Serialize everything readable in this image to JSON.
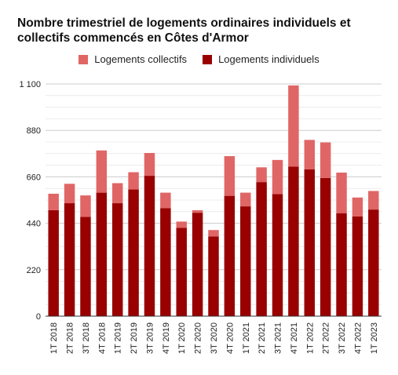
{
  "title_line1": "Nombre trimestriel de logements ordinaires individuels et",
  "title_line2": "collectifs commencés en Côtes d'Armor",
  "chart_data": {
    "type": "bar",
    "stacked": true,
    "title": "Nombre trimestriel de logements ordinaires individuels et collectifs commencés en Côtes d'Armor",
    "legend_position": "top",
    "categories": [
      "1T 2018",
      "2T 2018",
      "3T 2018",
      "4T 2018",
      "1T 2019",
      "2T 2019",
      "3T 2019",
      "4T 2019",
      "1T 2020",
      "2T 2020",
      "3T 2020",
      "4T 2020",
      "1T 2021",
      "2T 2021",
      "3T 2021",
      "4T 2021",
      "1T 2022",
      "2T 2022",
      "3T 2022",
      "4T 2022",
      "1T 2023"
    ],
    "series": [
      {
        "name": "Logements individuels",
        "color": "#990000",
        "values": [
          502,
          535,
          470,
          585,
          535,
          600,
          665,
          512,
          418,
          490,
          378,
          570,
          520,
          635,
          578,
          708,
          695,
          655,
          488,
          472,
          505
        ]
      },
      {
        "name": "Logements collectifs",
        "color": "#e06666",
        "values": [
          78,
          92,
          102,
          200,
          95,
          82,
          108,
          73,
          30,
          12,
          30,
          188,
          65,
          70,
          162,
          385,
          140,
          168,
          192,
          90,
          88
        ]
      }
    ],
    "yticks": [
      0,
      220,
      440,
      660,
      880,
      "1 100"
    ],
    "ylim": [
      0,
      1100
    ],
    "grid": true
  }
}
